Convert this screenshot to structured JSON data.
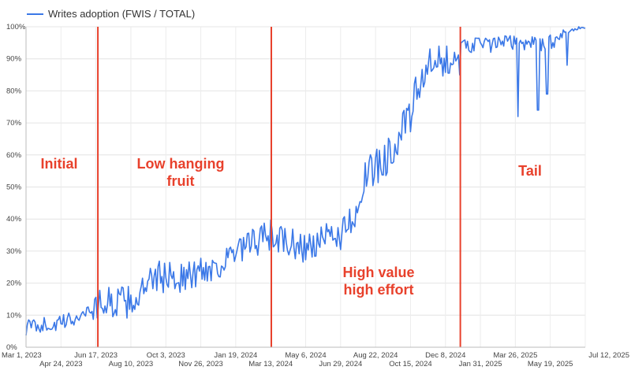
{
  "chart_data": {
    "type": "line",
    "legend": {
      "position": "top-left"
    },
    "series": [
      {
        "name": "Writes adoption (FWIS / TOTAL)",
        "color": "#3b78e7",
        "points": [
          [
            "2023-03-01",
            6
          ],
          [
            "2023-03-15",
            7
          ],
          [
            "2023-04-01",
            7
          ],
          [
            "2023-04-15",
            7
          ],
          [
            "2023-05-01",
            8
          ],
          [
            "2023-05-15",
            9
          ],
          [
            "2023-06-01",
            11
          ],
          [
            "2023-06-17",
            13
          ],
          [
            "2023-07-01",
            14
          ],
          [
            "2023-07-20",
            14
          ],
          [
            "2023-08-10",
            14
          ],
          [
            "2023-09-01",
            18
          ],
          [
            "2023-09-20",
            22
          ],
          [
            "2023-10-03",
            22
          ],
          [
            "2023-10-20",
            22
          ],
          [
            "2023-11-10",
            22
          ],
          [
            "2023-11-26",
            24
          ],
          [
            "2023-12-15",
            25
          ],
          [
            "2024-01-05",
            27
          ],
          [
            "2024-01-19",
            29
          ],
          [
            "2024-02-05",
            31
          ],
          [
            "2024-02-20",
            33
          ],
          [
            "2024-03-13",
            35
          ],
          [
            "2024-04-01",
            33
          ],
          [
            "2024-04-15",
            32
          ],
          [
            "2024-05-06",
            31
          ],
          [
            "2024-05-25",
            32
          ],
          [
            "2024-06-15",
            35
          ],
          [
            "2024-06-29",
            35
          ],
          [
            "2024-07-20",
            42
          ],
          [
            "2024-08-05",
            52
          ],
          [
            "2024-08-22",
            56
          ],
          [
            "2024-09-10",
            60
          ],
          [
            "2024-09-25",
            65
          ],
          [
            "2024-10-15",
            72
          ],
          [
            "2024-10-25",
            80
          ],
          [
            "2024-11-05",
            86
          ],
          [
            "2024-11-20",
            88
          ],
          [
            "2024-12-08",
            88
          ],
          [
            "2024-12-25",
            92
          ],
          [
            "2025-01-10",
            94
          ],
          [
            "2025-01-31",
            95
          ],
          [
            "2025-02-15",
            94
          ],
          [
            "2025-03-01",
            95
          ],
          [
            "2025-03-26",
            95
          ],
          [
            "2025-04-15",
            95
          ],
          [
            "2025-05-01",
            95
          ],
          [
            "2025-05-19",
            95
          ],
          [
            "2025-06-10",
            98
          ],
          [
            "2025-06-20",
            99
          ],
          [
            "2025-07-12",
            100
          ]
        ],
        "dips": [
          [
            "2024-12-30",
            85
          ],
          [
            "2025-03-30",
            72
          ],
          [
            "2025-04-30",
            74
          ],
          [
            "2025-05-14",
            79
          ],
          [
            "2025-06-14",
            88
          ]
        ]
      }
    ],
    "x_range": [
      "2023-03-01",
      "2025-07-12"
    ],
    "x_ticks_row1": [
      "Mar 1, 2023",
      "Jun 17, 2023",
      "Oct 3, 2023",
      "Jan 19, 2024",
      "May 6, 2024",
      "Aug 22, 2024",
      "Dec 8, 2024",
      "Mar 26, 2025",
      "Jul 12, 2025"
    ],
    "x_ticks_row2": [
      "Apr 24, 2023",
      "Aug 10, 2023",
      "Nov 26, 2023",
      "Mar 13, 2024",
      "Jun 29, 2024",
      "Oct 15, 2024",
      "Jan 31, 2025",
      "May 19, 2025"
    ],
    "y_ticks": [
      "0%",
      "10%",
      "20%",
      "30%",
      "40%",
      "50%",
      "60%",
      "70%",
      "80%",
      "90%",
      "100%"
    ],
    "ylim": [
      0,
      100
    ],
    "grid": true,
    "vertical_markers": {
      "color": "#e8412c",
      "dates": [
        "2023-06-20",
        "2024-03-14",
        "2024-12-31"
      ]
    },
    "phase_labels": [
      {
        "lines": [
          "Initial"
        ]
      },
      {
        "lines": [
          "Low hanging",
          "fruit"
        ]
      },
      {
        "lines": [
          "High value",
          "high effort"
        ]
      },
      {
        "lines": [
          "Tail"
        ]
      }
    ]
  }
}
